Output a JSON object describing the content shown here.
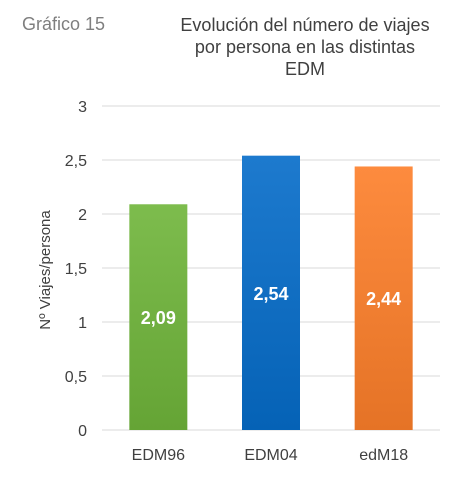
{
  "header": {
    "figure_label": "Gráfico 15",
    "title_lines": [
      "Evolución del número de viajes",
      "por persona en las distintas",
      "EDM"
    ]
  },
  "colors": {
    "EDM96": "#6fae3f",
    "EDM04": "#0f6cc0",
    "edM18": "#ef7d30",
    "gridline": "#d9d9d9",
    "axis_text": "#404040",
    "figure_label": "#7f7f7f"
  },
  "chart_data": {
    "type": "bar",
    "title": "Evolución del número de viajes por persona en las distintas EDM",
    "categories": [
      "EDM96",
      "EDM04",
      "edM18"
    ],
    "values": [
      2.09,
      2.54,
      2.44
    ],
    "value_labels": [
      "2,09",
      "2,54",
      "2,44"
    ],
    "xlabel": "",
    "ylabel": "Nº Viajes/persona",
    "ylim": [
      0,
      3
    ],
    "yticks": [
      0,
      0.5,
      1,
      1.5,
      2,
      2.5,
      3
    ],
    "ytick_labels": [
      "0",
      "0,5",
      "1",
      "1,5",
      "2",
      "2,5",
      "3"
    ],
    "grid": true,
    "legend": "none"
  }
}
